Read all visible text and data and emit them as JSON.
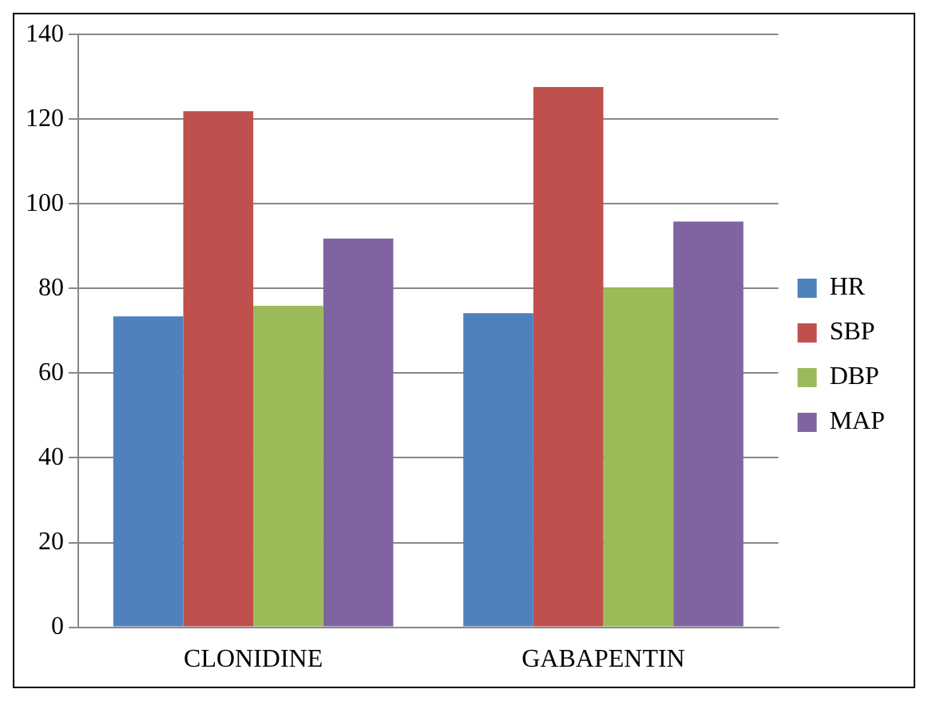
{
  "chart_data": {
    "type": "bar",
    "categories": [
      "CLONIDINE",
      "GABAPENTIN"
    ],
    "series": [
      {
        "name": "HR",
        "color": "#4f81bd",
        "values": [
          73.4,
          74.2
        ]
      },
      {
        "name": "SBP",
        "color": "#c0504d",
        "values": [
          121.9,
          127.6
        ]
      },
      {
        "name": "DBP",
        "color": "#9bbb59",
        "values": [
          75.9,
          80.2
        ]
      },
      {
        "name": "MAP",
        "color": "#8064a2",
        "values": [
          91.8,
          95.8
        ]
      }
    ],
    "ylim": [
      0,
      140
    ],
    "yticks": [
      0,
      20,
      40,
      60,
      80,
      100,
      120,
      140
    ],
    "grid": "y",
    "legend": "right"
  }
}
